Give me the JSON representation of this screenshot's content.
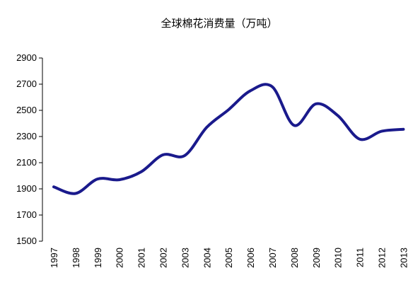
{
  "chart_data": {
    "type": "line",
    "title": "全球棉花消费量（万吨）",
    "xlabel": "",
    "ylabel": "",
    "ylim": [
      1500,
      2900
    ],
    "yticks": [
      1500,
      1700,
      1900,
      2100,
      2300,
      2500,
      2700,
      2900
    ],
    "categories": [
      "1997",
      "1998",
      "1999",
      "2000",
      "2001",
      "2002",
      "2003",
      "2004",
      "2005",
      "2006",
      "2007",
      "2008",
      "2009",
      "2010",
      "2011",
      "2012",
      "2013"
    ],
    "series": [
      {
        "values": [
          1915,
          1865,
          1975,
          1970,
          2030,
          2160,
          2155,
          2370,
          2505,
          2650,
          2680,
          2385,
          2550,
          2460,
          2280,
          2340,
          2355
        ],
        "color": "#1a1a8c"
      }
    ],
    "grid": false,
    "legend": "none"
  }
}
